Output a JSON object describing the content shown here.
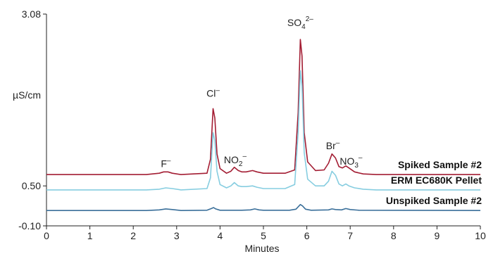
{
  "chart_data": {
    "type": "line",
    "title": "",
    "xlabel": "Minutes",
    "ylabel": "µS/cm",
    "xlim": [
      0,
      10
    ],
    "ylim": [
      -0.1,
      3.08
    ],
    "x_ticks": [
      "0",
      "1",
      "2",
      "3",
      "4",
      "5",
      "6",
      "7",
      "8",
      "9",
      "10"
    ],
    "y_ticks": [
      "3.08",
      "0.50",
      "-0.10"
    ],
    "grid": false,
    "legend_placement": "right, next to each trace",
    "series": [
      {
        "name": "Spiked Sample #2",
        "color": "#a31d33",
        "baseline": 0.67,
        "points": [
          [
            0,
            0.67
          ],
          [
            2.3,
            0.67
          ],
          [
            2.6,
            0.69
          ],
          [
            2.7,
            0.71
          ],
          [
            2.8,
            0.71
          ],
          [
            2.9,
            0.69
          ],
          [
            3.1,
            0.67
          ],
          [
            3.7,
            0.69
          ],
          [
            3.78,
            0.9
          ],
          [
            3.84,
            1.66
          ],
          [
            3.88,
            1.52
          ],
          [
            3.93,
            0.98
          ],
          [
            4.0,
            0.76
          ],
          [
            4.15,
            0.69
          ],
          [
            4.25,
            0.72
          ],
          [
            4.33,
            0.78
          ],
          [
            4.42,
            0.73
          ],
          [
            4.5,
            0.71
          ],
          [
            4.6,
            0.71
          ],
          [
            4.75,
            0.73
          ],
          [
            4.85,
            0.71
          ],
          [
            5.0,
            0.69
          ],
          [
            5.5,
            0.69
          ],
          [
            5.72,
            0.74
          ],
          [
            5.8,
            1.6
          ],
          [
            5.85,
            2.7
          ],
          [
            5.89,
            2.45
          ],
          [
            5.94,
            1.3
          ],
          [
            6.02,
            0.86
          ],
          [
            6.2,
            0.73
          ],
          [
            6.4,
            0.74
          ],
          [
            6.5,
            0.84
          ],
          [
            6.58,
            0.98
          ],
          [
            6.66,
            0.92
          ],
          [
            6.74,
            0.79
          ],
          [
            6.82,
            0.77
          ],
          [
            6.9,
            0.8
          ],
          [
            6.97,
            0.77
          ],
          [
            7.1,
            0.71
          ],
          [
            7.3,
            0.68
          ],
          [
            7.6,
            0.67
          ],
          [
            10,
            0.67
          ]
        ]
      },
      {
        "name": "ERM EC680K Pellet",
        "color": "#86cde0",
        "baseline": 0.44,
        "points": [
          [
            0,
            0.44
          ],
          [
            2.3,
            0.44
          ],
          [
            2.6,
            0.45
          ],
          [
            2.75,
            0.47
          ],
          [
            2.9,
            0.46
          ],
          [
            3.1,
            0.44
          ],
          [
            3.7,
            0.46
          ],
          [
            3.78,
            0.62
          ],
          [
            3.84,
            1.3
          ],
          [
            3.88,
            1.18
          ],
          [
            3.93,
            0.72
          ],
          [
            4.0,
            0.52
          ],
          [
            4.15,
            0.47
          ],
          [
            4.25,
            0.5
          ],
          [
            4.33,
            0.55
          ],
          [
            4.42,
            0.5
          ],
          [
            4.5,
            0.49
          ],
          [
            4.6,
            0.49
          ],
          [
            4.75,
            0.5
          ],
          [
            4.85,
            0.48
          ],
          [
            5.0,
            0.46
          ],
          [
            5.5,
            0.46
          ],
          [
            5.72,
            0.52
          ],
          [
            5.8,
            1.3
          ],
          [
            5.85,
            2.23
          ],
          [
            5.89,
            2.0
          ],
          [
            5.94,
            1.0
          ],
          [
            6.02,
            0.6
          ],
          [
            6.2,
            0.5
          ],
          [
            6.4,
            0.5
          ],
          [
            6.5,
            0.57
          ],
          [
            6.58,
            0.72
          ],
          [
            6.66,
            0.66
          ],
          [
            6.74,
            0.53
          ],
          [
            6.82,
            0.5
          ],
          [
            6.9,
            0.53
          ],
          [
            6.97,
            0.5
          ],
          [
            7.1,
            0.47
          ],
          [
            7.3,
            0.45
          ],
          [
            7.6,
            0.44
          ],
          [
            10,
            0.44
          ]
        ]
      },
      {
        "name": "Unspiked Sample #2",
        "color": "#3a6f9a",
        "baseline": 0.13,
        "points": [
          [
            0,
            0.13
          ],
          [
            2.3,
            0.13
          ],
          [
            2.6,
            0.14
          ],
          [
            2.75,
            0.155
          ],
          [
            2.9,
            0.145
          ],
          [
            3.1,
            0.13
          ],
          [
            3.7,
            0.135
          ],
          [
            3.8,
            0.16
          ],
          [
            3.85,
            0.175
          ],
          [
            3.9,
            0.155
          ],
          [
            4.0,
            0.135
          ],
          [
            4.5,
            0.135
          ],
          [
            4.7,
            0.14
          ],
          [
            4.8,
            0.155
          ],
          [
            4.9,
            0.14
          ],
          [
            5.0,
            0.135
          ],
          [
            5.6,
            0.135
          ],
          [
            5.75,
            0.15
          ],
          [
            5.85,
            0.22
          ],
          [
            5.9,
            0.2
          ],
          [
            5.97,
            0.15
          ],
          [
            6.1,
            0.135
          ],
          [
            6.5,
            0.14
          ],
          [
            6.58,
            0.155
          ],
          [
            6.66,
            0.145
          ],
          [
            6.8,
            0.14
          ],
          [
            6.9,
            0.16
          ],
          [
            7.0,
            0.145
          ],
          [
            7.2,
            0.135
          ],
          [
            10,
            0.13
          ]
        ]
      }
    ],
    "peak_labels": [
      {
        "ion": "F",
        "sup": "–",
        "sub": "",
        "x": 2.75,
        "y": 0.78
      },
      {
        "ion": "Cl",
        "sup": "–",
        "sub": "",
        "x": 3.84,
        "y": 1.84
      },
      {
        "ion": "NO",
        "sup": "–",
        "sub": "2",
        "x": 4.35,
        "y": 0.84
      },
      {
        "ion": "SO",
        "sup": "2–",
        "sub": "4",
        "x": 5.85,
        "y": 2.9
      },
      {
        "ion": "Br",
        "sup": "–",
        "sub": "",
        "x": 6.6,
        "y": 1.05
      },
      {
        "ion": "NO",
        "sup": "–",
        "sub": "3",
        "x": 7.02,
        "y": 0.82
      }
    ]
  }
}
